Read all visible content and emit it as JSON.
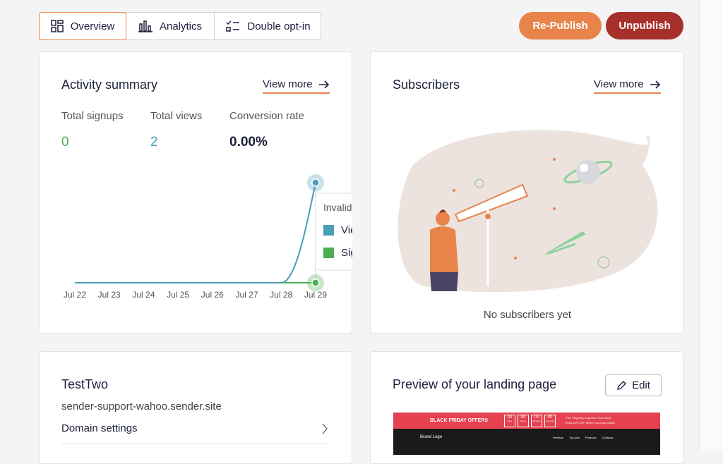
{
  "tabs": [
    "Overview",
    "Analytics",
    "Double opt-in"
  ],
  "actions": [
    "Re-Publish",
    "Unpublish"
  ],
  "activity": {
    "title": "Activity summary",
    "view_more": "View more",
    "stats": [
      {
        "label": "Total signups",
        "value": 0
      },
      {
        "label": "Total views",
        "value": 2
      },
      {
        "label": "Conversion rate",
        "value": "0.00%"
      }
    ]
  },
  "chart_data": {
    "type": "line",
    "categories": [
      "Jul 22",
      "Jul 23",
      "Jul 24",
      "Jul 25",
      "Jul 26",
      "Jul 27",
      "Jul 28",
      "Jul 29"
    ],
    "series": [
      {
        "name": "Views",
        "color": "#4a9db8",
        "values": [
          0,
          0,
          0,
          0,
          0,
          0,
          0,
          2
        ]
      },
      {
        "name": "Signups",
        "color": "#4caf50",
        "values": [
          0,
          0,
          0,
          0,
          0,
          0,
          0,
          0
        ]
      }
    ],
    "ylim": [
      0,
      2
    ],
    "tooltip": {
      "title": "Invalid Date",
      "labels": [
        "Views:",
        "Signups:"
      ]
    }
  },
  "subscribers": {
    "title": "Subscribers",
    "view_more": "View more",
    "empty": "No subscribers yet"
  },
  "site": {
    "title": "TestTwo",
    "domain": "sender-support-wahoo.sender.site",
    "link": "Domain settings"
  },
  "preview": {
    "title": "Preview of your landing page",
    "edit": "Edit",
    "banner": "BLACK FRIDAY OFFERS",
    "countdown": [
      "00",
      "00",
      "00",
      "00"
    ],
    "countdown_units": [
      "Days",
      "Hours",
      "Minutes",
      "Seconds"
    ],
    "promo": [
      "Free Shipping, Anywhere Over $200",
      "Extra 15% OFF When You Shop Online"
    ],
    "brand": "Brand Logo",
    "nav": [
      "Reviews",
      "Top pics",
      "Products",
      "Contacts"
    ]
  }
}
